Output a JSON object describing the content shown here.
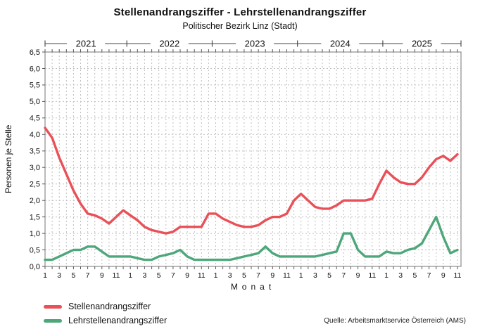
{
  "title": "Stellenandrangsziffer - Lehrstellenandrangsziffer",
  "subtitle": "Politischer Bezirk Linz (Stadt)",
  "source": "Quelle: Arbeitsmarktservice Österreich (AMS)",
  "legend": [
    {
      "label": "Stellenandrangsziffer",
      "color": "#e95058"
    },
    {
      "label": "Lehrstellenandrangsziffer",
      "color": "#4da77a"
    }
  ],
  "chart_data": {
    "type": "line",
    "title": "Stellenandrangsziffer - Lehrstellenandrangsziffer",
    "subtitle": "Politischer Bezirk Linz (Stadt)",
    "xlabel": "Monat",
    "ylabel": "Personen je Stelle",
    "ylim": [
      0,
      6.5
    ],
    "y_tick_step": 0.5,
    "y_tick_labels": [
      "0,0",
      "0,5",
      "1,0",
      "1,5",
      "2,0",
      "2,5",
      "3,0",
      "3,5",
      "4,0",
      "4,5",
      "5,0",
      "5,5",
      "6,0",
      "6,5"
    ],
    "x_axis_unit": "Monat (1-12 je Jahr)",
    "x_tick_labeled_months": [
      1,
      3,
      5,
      7,
      9,
      11
    ],
    "grid": true,
    "legend_position": "bottom-left",
    "years": [
      {
        "label": "2021",
        "months": 12
      },
      {
        "label": "2022",
        "months": 12
      },
      {
        "label": "2023",
        "months": 12
      },
      {
        "label": "2024",
        "months": 12
      },
      {
        "label": "2025",
        "months": 11
      }
    ],
    "series": [
      {
        "name": "Stellenandrangsziffer",
        "color": "#e95058",
        "values": [
          4.2,
          3.9,
          3.3,
          2.8,
          2.3,
          1.9,
          1.6,
          1.55,
          1.45,
          1.3,
          1.5,
          1.7,
          1.55,
          1.4,
          1.2,
          1.1,
          1.05,
          1.0,
          1.05,
          1.2,
          1.2,
          1.2,
          1.2,
          1.6,
          1.6,
          1.45,
          1.35,
          1.25,
          1.2,
          1.2,
          1.25,
          1.4,
          1.5,
          1.5,
          1.6,
          2.0,
          2.2,
          2.0,
          1.8,
          1.75,
          1.75,
          1.85,
          2.0,
          2.0,
          2.0,
          2.0,
          2.05,
          2.5,
          2.9,
          2.7,
          2.55,
          2.5,
          2.5,
          2.7,
          3.0,
          3.25,
          3.35,
          3.2,
          3.4
        ]
      },
      {
        "name": "Lehrstellenandrangsziffer",
        "color": "#4da77a",
        "values": [
          0.2,
          0.2,
          0.3,
          0.4,
          0.5,
          0.5,
          0.6,
          0.6,
          0.45,
          0.3,
          0.3,
          0.3,
          0.3,
          0.25,
          0.2,
          0.2,
          0.3,
          0.35,
          0.4,
          0.5,
          0.3,
          0.2,
          0.2,
          0.2,
          0.2,
          0.2,
          0.2,
          0.25,
          0.3,
          0.35,
          0.4,
          0.6,
          0.4,
          0.3,
          0.3,
          0.3,
          0.3,
          0.3,
          0.3,
          0.35,
          0.4,
          0.45,
          1.0,
          1.0,
          0.5,
          0.3,
          0.3,
          0.3,
          0.45,
          0.4,
          0.4,
          0.5,
          0.55,
          0.7,
          1.1,
          1.5,
          0.9,
          0.4,
          0.5
        ]
      }
    ]
  }
}
